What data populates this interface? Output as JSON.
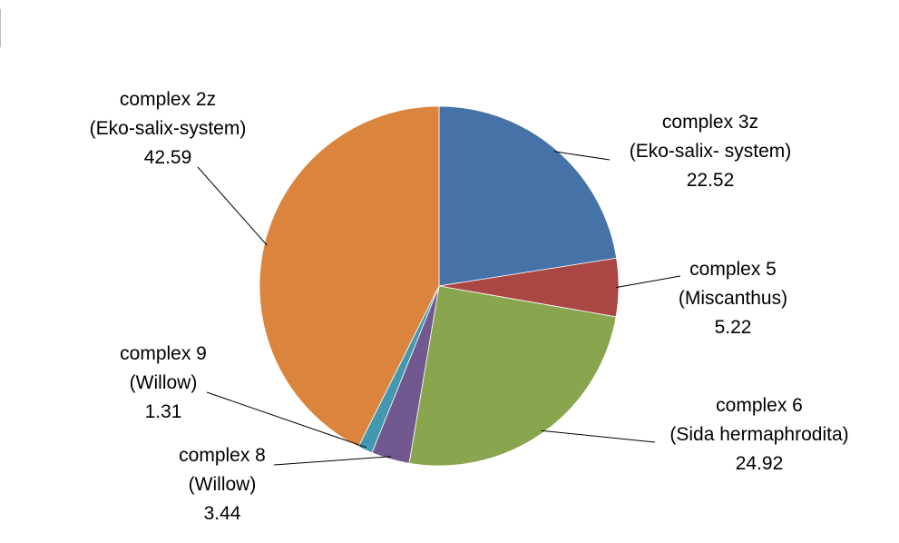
{
  "chart_data": {
    "type": "pie",
    "title": "",
    "series": [
      {
        "name": "complex 3z",
        "sub": "(Eko-salix- system)",
        "value": 22.52,
        "value_label": "22.52",
        "color": "#4572a7"
      },
      {
        "name": "complex 5",
        "sub": "(Miscanthus)",
        "value": 5.22,
        "value_label": "5.22",
        "color": "#aa4643"
      },
      {
        "name": "complex 6",
        "sub": "(Sida hermaphrodita)",
        "value": 24.92,
        "value_label": "24.92",
        "color": "#89a54e"
      },
      {
        "name": "complex 8",
        "sub": "(Willow)",
        "value": 3.44,
        "value_label": "3.44",
        "color": "#71588f"
      },
      {
        "name": "complex 9",
        "sub": "(Willow)",
        "value": 1.31,
        "value_label": "1.31",
        "color": "#4198af"
      },
      {
        "name": "complex 2z",
        "sub": "(Eko-salix-system)",
        "value": 42.59,
        "value_label": "42.59",
        "color": "#db843d"
      }
    ],
    "start_angle": "12 o'clock",
    "direction": "clockwise",
    "legend": "none",
    "data_labels": "outside with leader lines"
  }
}
